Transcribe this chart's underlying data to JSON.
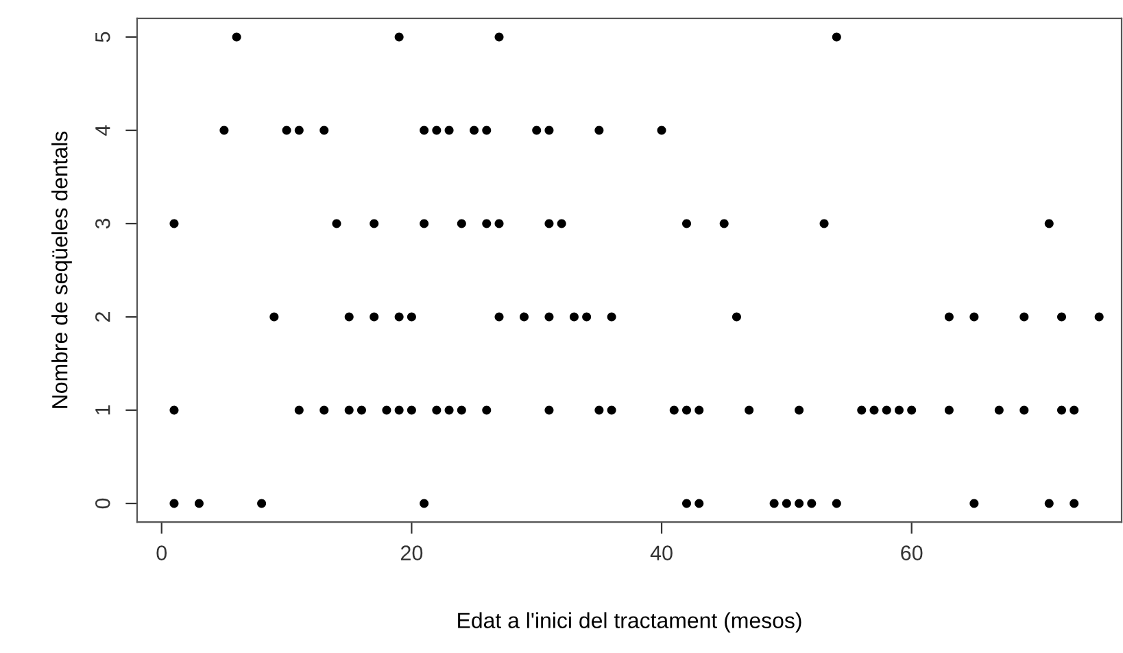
{
  "chart_data": {
    "type": "scatter",
    "xlabel": "Edat a l'inici del tractament (mesos)",
    "ylabel": "Nombre de seqüeles dentals",
    "x": [
      6,
      19,
      27,
      54,
      5,
      10,
      11,
      13,
      21,
      22,
      23,
      25,
      26,
      30,
      31,
      35,
      40,
      1,
      14,
      17,
      21,
      24,
      26,
      27,
      31,
      32,
      42,
      45,
      53,
      71,
      9,
      15,
      17,
      19,
      20,
      27,
      29,
      31,
      33,
      34,
      36,
      46,
      63,
      65,
      69,
      72,
      75,
      1,
      11,
      13,
      15,
      16,
      18,
      19,
      20,
      22,
      23,
      24,
      26,
      31,
      35,
      36,
      41,
      42,
      43,
      47,
      51,
      56,
      57,
      58,
      59,
      60,
      63,
      67,
      69,
      72,
      73,
      1,
      3,
      8,
      21,
      42,
      43,
      49,
      50,
      51,
      52,
      54,
      65,
      71,
      73
    ],
    "values": [
      5,
      5,
      5,
      5,
      4,
      4,
      4,
      4,
      4,
      4,
      4,
      4,
      4,
      4,
      4,
      4,
      4,
      3,
      3,
      3,
      3,
      3,
      3,
      3,
      3,
      3,
      3,
      3,
      3,
      3,
      2,
      2,
      2,
      2,
      2,
      2,
      2,
      2,
      2,
      2,
      2,
      2,
      2,
      2,
      2,
      2,
      2,
      1,
      1,
      1,
      1,
      1,
      1,
      1,
      1,
      1,
      1,
      1,
      1,
      1,
      1,
      1,
      1,
      1,
      1,
      1,
      1,
      1,
      1,
      1,
      1,
      1,
      1,
      1,
      1,
      1,
      1,
      0,
      0,
      0,
      0,
      0,
      0,
      0,
      0,
      0,
      0,
      0,
      0,
      0,
      0
    ],
    "color": "#000000",
    "marker": "circle",
    "xlim": [
      -1.96,
      76.8
    ],
    "ylim": [
      -0.2,
      5.2
    ],
    "xticks": [
      0,
      20,
      40,
      60
    ],
    "yticks": [
      0,
      1,
      2,
      3,
      4,
      5
    ],
    "grid": false,
    "legend": false
  }
}
